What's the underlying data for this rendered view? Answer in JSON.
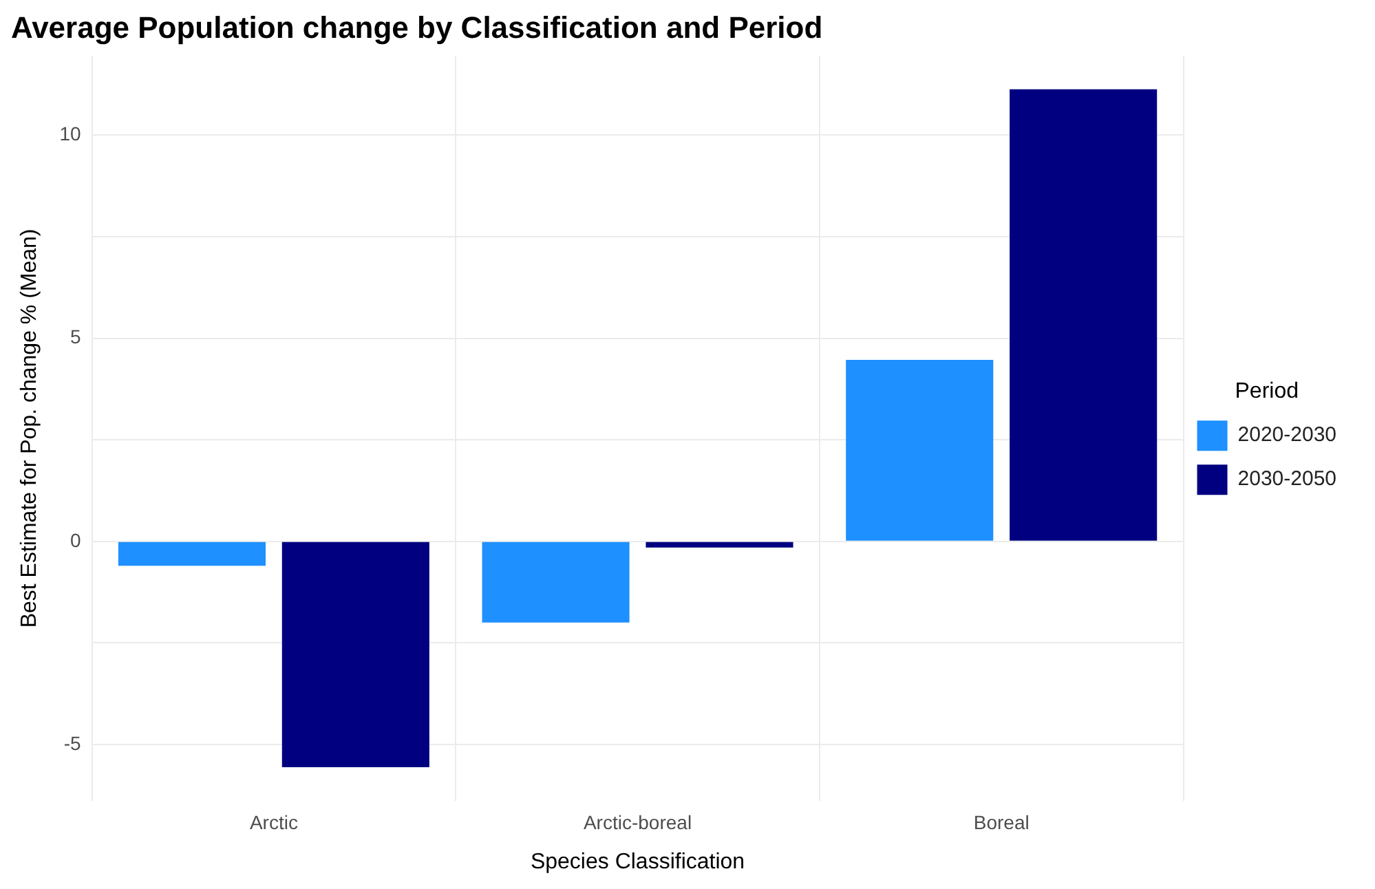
{
  "chart_data": {
    "type": "bar",
    "title": "Average Population change by Classification and Period",
    "xlabel": "Species Classification",
    "ylabel": "Best Estimate for Pop. change % (Mean)",
    "legend_title": "Period",
    "categories": [
      "Arctic",
      "Arctic-boreal",
      "Boreal"
    ],
    "series": [
      {
        "name": "2020-2030",
        "color": "#1e90ff",
        "values": [
          -0.6,
          -2.0,
          4.47
        ]
      },
      {
        "name": "2030-2050",
        "color": "#000080",
        "values": [
          -5.56,
          -0.15,
          11.13
        ]
      }
    ],
    "ylim": [
      -6.39,
      11.96
    ],
    "yticks": [
      {
        "value": -5,
        "label": "-5"
      },
      {
        "value": -2.5,
        "label": null
      },
      0,
      {
        "value": 2.5,
        "label": null
      },
      5,
      {
        "value": 7.5,
        "label": null
      },
      10
    ],
    "grid": true,
    "legend": "right"
  }
}
